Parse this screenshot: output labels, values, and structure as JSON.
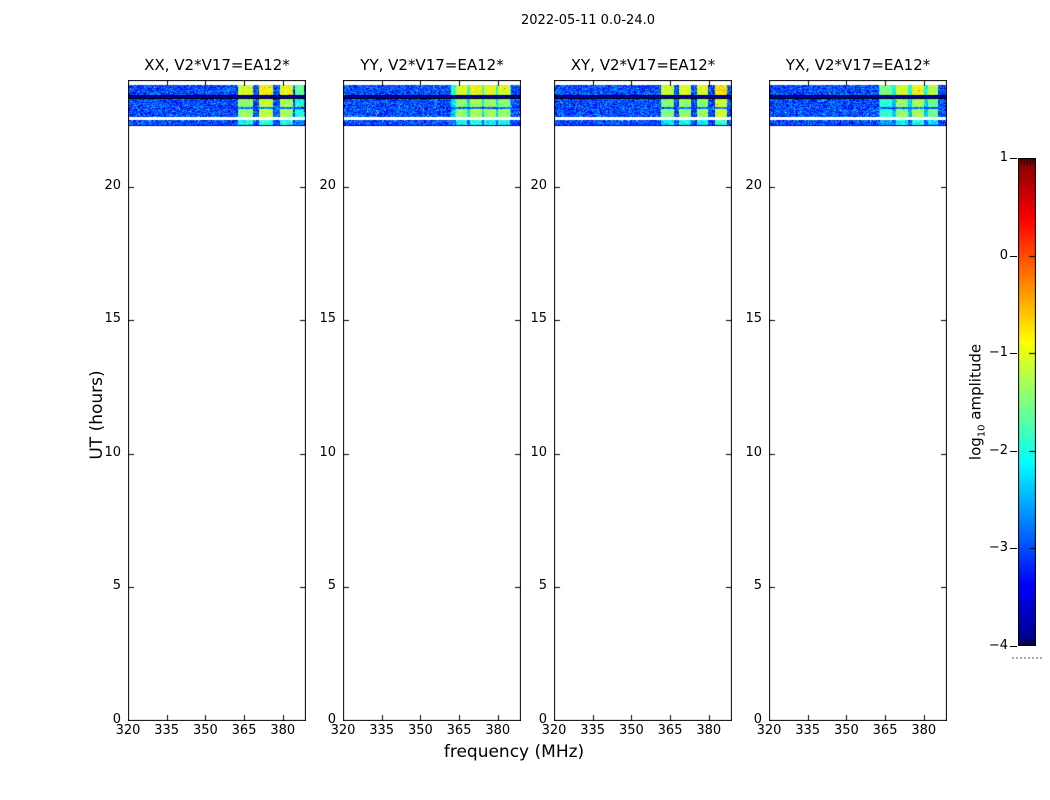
{
  "chart_data": {
    "type": "heatmap",
    "title": "2022-05-11 0.0-24.0",
    "xlabel": "frequency (MHz)",
    "ylabel": "UT (hours)",
    "x_range_mhz": [
      320,
      389
    ],
    "y_range_hours": [
      0,
      24
    ],
    "x_ticks": [
      {
        "v": 320,
        "label": "320"
      },
      {
        "v": 335,
        "label": "335"
      },
      {
        "v": 350,
        "label": "350"
      },
      {
        "v": 365,
        "label": "365"
      },
      {
        "v": 380,
        "label": "380"
      }
    ],
    "y_ticks": [
      {
        "v": 0,
        "label": "0"
      },
      {
        "v": 5,
        "label": "5"
      },
      {
        "v": 10,
        "label": "10"
      },
      {
        "v": 15,
        "label": "15"
      },
      {
        "v": 20,
        "label": "20"
      }
    ],
    "colorbar": {
      "label_parts": {
        "prefix": "log",
        "sub": "10",
        "suffix": " amplitude"
      },
      "range": [
        -4,
        1
      ],
      "colormap": "jet",
      "ticks": [
        {
          "v": 1,
          "label": "1"
        },
        {
          "v": 0,
          "label": "0"
        },
        {
          "v": -1,
          "label": "−1"
        },
        {
          "v": -2,
          "label": "−2"
        },
        {
          "v": -3,
          "label": "−3"
        },
        {
          "v": -4,
          "label": "−4"
        }
      ]
    },
    "base_noise_log10": [
      -3.6,
      -2.45
    ],
    "time_bands": [
      {
        "ut": [
          23.44,
          23.83
        ],
        "kind": "noise",
        "stripe_boost": 0.35
      },
      {
        "ut": [
          23.29,
          23.44
        ],
        "kind": "black"
      },
      {
        "ut": [
          22.6,
          23.29
        ],
        "kind": "noise",
        "stripe_gap_ut": [
          22.93,
          23.02
        ]
      },
      {
        "ut": [
          22.52,
          22.6
        ],
        "kind": "gap"
      },
      {
        "ut": [
          22.32,
          22.52
        ],
        "kind": "noise",
        "stripe_dim": 0.7
      },
      {
        "ut": [
          22.26,
          22.32
        ],
        "kind": "faint"
      }
    ],
    "panels": [
      {
        "pol": "XX",
        "title": "XX, V2*V17=EA12*",
        "seed": 11,
        "stripes": [
          [
            362.4,
            368.3,
            -1.4
          ],
          [
            370.7,
            376.2,
            -1.2
          ],
          [
            378.7,
            383.8,
            -1.3
          ],
          [
            384.4,
            388.2,
            -2.0
          ]
        ]
      },
      {
        "pol": "YY",
        "title": "YY, V2*V17=EA12*",
        "seed": 22,
        "stripes": [
          [
            361.5,
            384.8,
            -2.3
          ],
          [
            363.5,
            368.0,
            -1.4
          ],
          [
            369.0,
            373.5,
            -1.3
          ],
          [
            374.5,
            379.0,
            -1.4
          ],
          [
            380.0,
            384.5,
            -1.4
          ]
        ]
      },
      {
        "pol": "XY",
        "title": "XY, V2*V17=EA12*",
        "seed": 33,
        "stripes": [
          [
            361.4,
            366.2,
            -1.5
          ],
          [
            368.3,
            373.1,
            -1.4
          ],
          [
            375.2,
            379.6,
            -1.4
          ],
          [
            382.1,
            386.9,
            -1.1
          ]
        ]
      },
      {
        "pol": "YX",
        "title": "YX, V2*V17=EA12*",
        "seed": 44,
        "stripes": [
          [
            362.6,
            384.6,
            -2.4
          ],
          [
            362.8,
            367.6,
            -1.9
          ],
          [
            369.0,
            373.8,
            -1.4
          ],
          [
            375.2,
            380.0,
            -1.3
          ],
          [
            381.4,
            385.5,
            -1.6
          ]
        ]
      }
    ]
  }
}
